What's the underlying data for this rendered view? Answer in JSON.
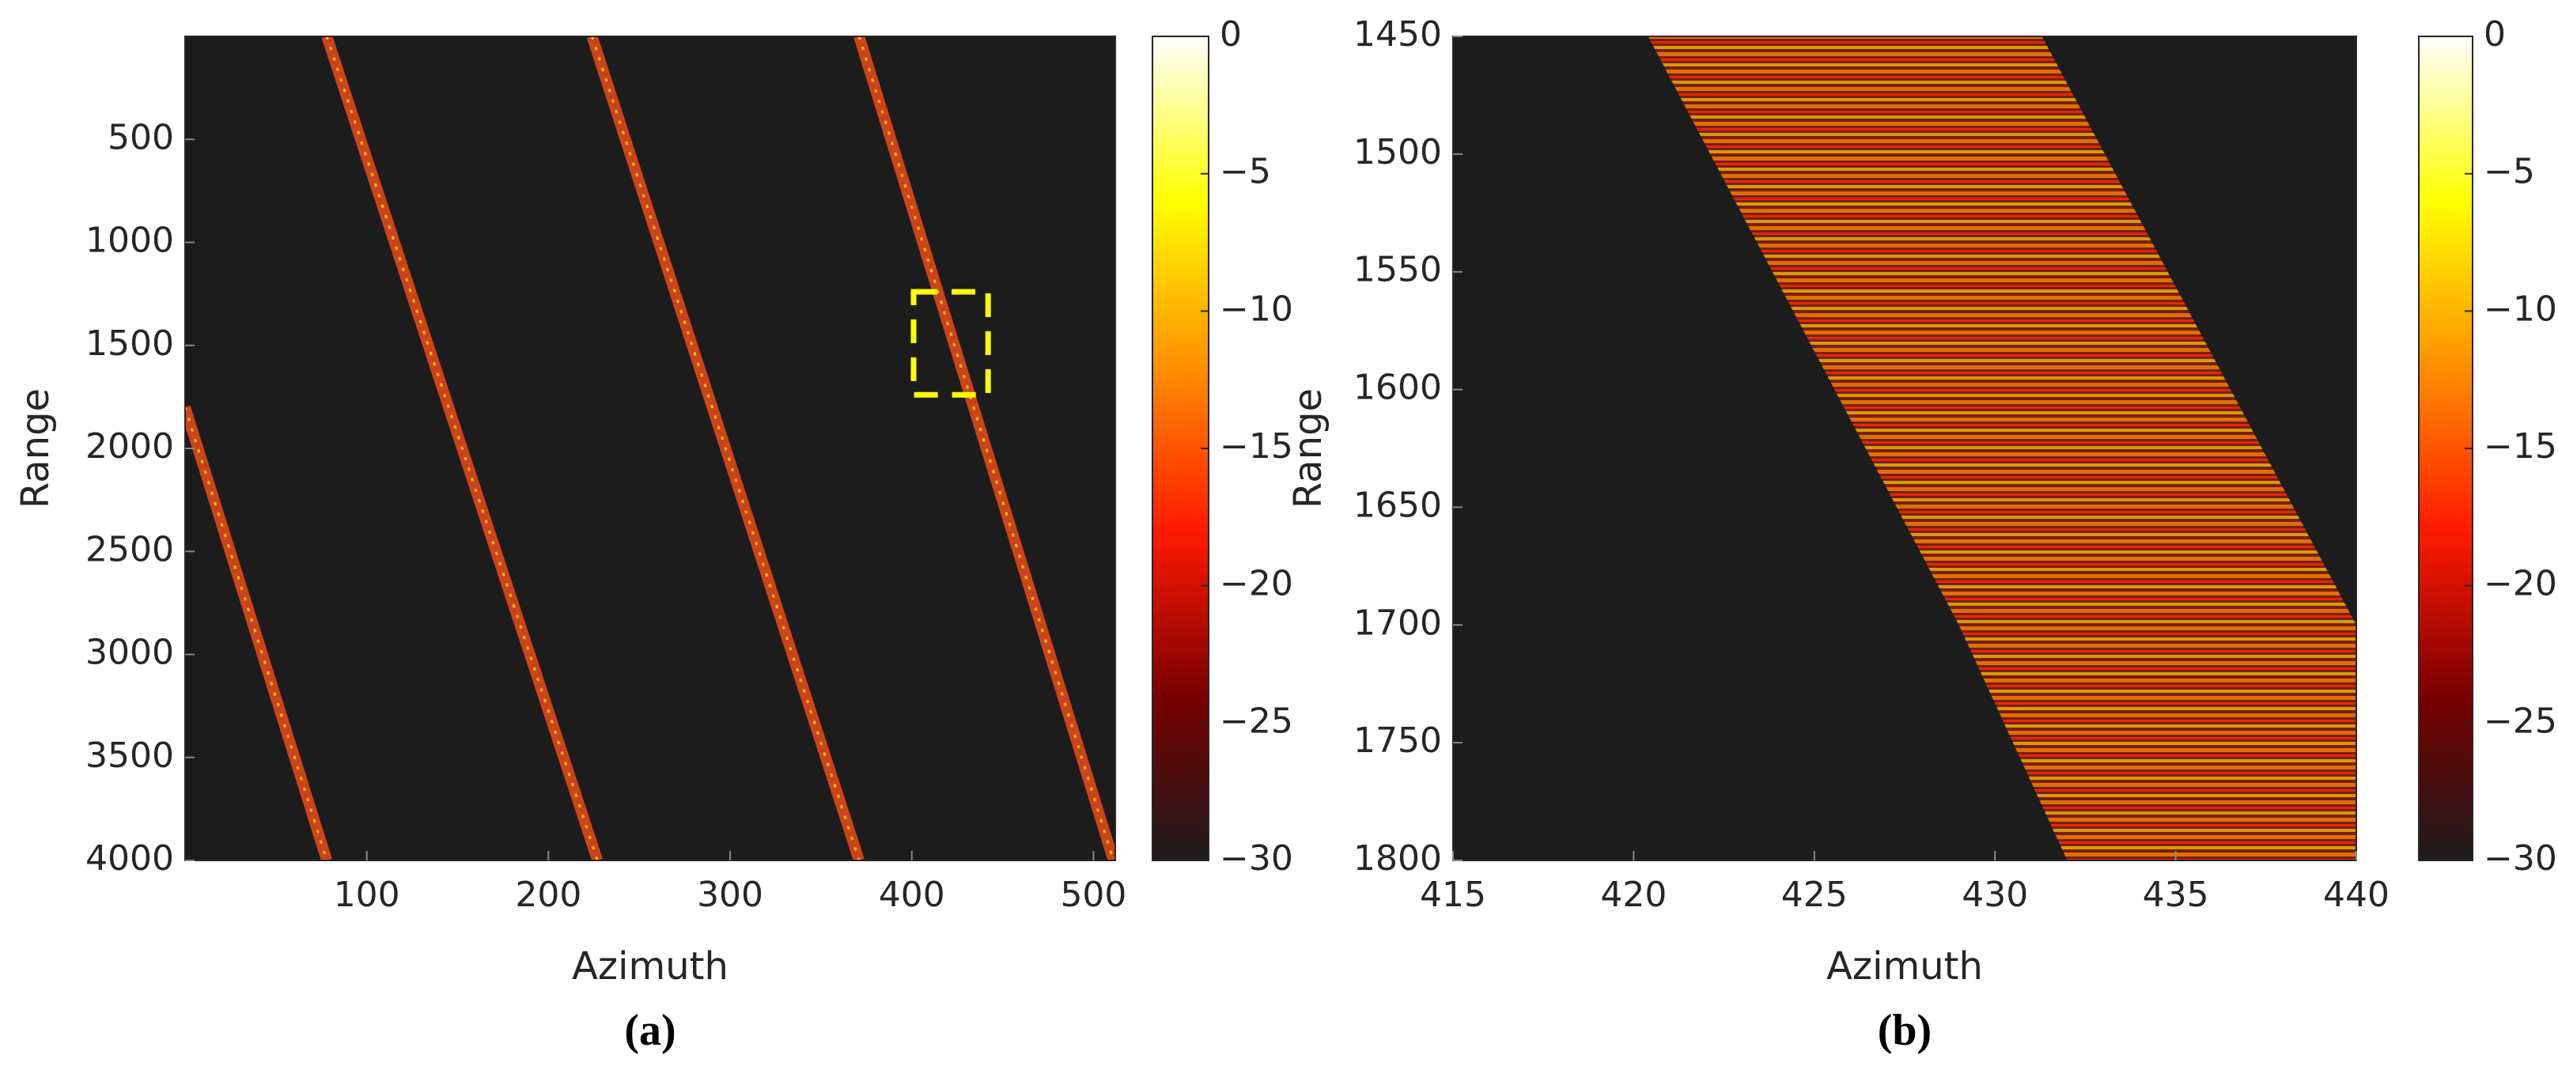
{
  "chart_data": [
    {
      "type": "heatmap",
      "caption": "(a)",
      "xlabel": "Azimuth",
      "ylabel": "Range",
      "xlim": [
        0,
        512
      ],
      "xticks": [
        100,
        200,
        300,
        400,
        500
      ],
      "ylim": [
        0,
        4000
      ],
      "yticks": [
        500,
        1000,
        1500,
        2000,
        2500,
        3000,
        3500,
        4000
      ],
      "y_reversed": true,
      "clim": [
        -30,
        0
      ],
      "cticks": [
        0,
        {
          "value": -5,
          "label": "−5"
        },
        {
          "value": -10,
          "label": "−10"
        },
        {
          "value": -15,
          "label": "−15"
        },
        {
          "value": -20,
          "label": "−20"
        },
        {
          "value": -25,
          "label": "−25"
        },
        {
          "value": -30,
          "label": "−30"
        }
      ],
      "colormap": [
        "#1c1c1c",
        "#7a0000",
        "#ff1a00",
        "#ff9000",
        "#ffff00",
        "#ffffff"
      ],
      "series": [
        {
          "color": "#e0481c",
          "x": [
            0,
            78
          ],
          "y": [
            1800,
            4000
          ]
        },
        {
          "color": "#e0481c",
          "x": [
            78,
            227
          ],
          "y": [
            0,
            4000
          ]
        },
        {
          "color": "#e0481c",
          "x": [
            224,
            371
          ],
          "y": [
            0,
            4000
          ]
        },
        {
          "color": "#e0481c",
          "x": [
            371,
            511
          ],
          "y": [
            0,
            4000
          ]
        }
      ],
      "highlight": {
        "color": "#ffff00",
        "xlim": [
          401,
          442
        ],
        "ylim": [
          1240,
          1740
        ]
      }
    },
    {
      "type": "heatmap",
      "caption": "(b)",
      "xlabel": "Azimuth",
      "ylabel": "Range",
      "xlim": [
        415,
        440
      ],
      "xticks": [
        415,
        420,
        425,
        430,
        435,
        440
      ],
      "ylim": [
        1450,
        1800
      ],
      "yticks": [
        1450,
        1500,
        1550,
        1600,
        1650,
        1700,
        1750,
        1800
      ],
      "y_reversed": true,
      "clim": [
        -30,
        0
      ],
      "cticks": [
        0,
        {
          "value": -5,
          "label": "−5"
        },
        {
          "value": -10,
          "label": "−10"
        },
        {
          "value": -15,
          "label": "−15"
        },
        {
          "value": -20,
          "label": "−20"
        },
        {
          "value": -25,
          "label": "−25"
        },
        {
          "value": -30,
          "label": "−30"
        }
      ],
      "colormap": [
        "#1c1c1c",
        "#7a0000",
        "#ff1a00",
        "#ff9000",
        "#ffff00",
        "#ffffff"
      ],
      "band": {
        "color": "#b8200e",
        "y": [
          1450,
          1700,
          1800
        ],
        "x_left": [
          420.4,
          429,
          432
        ],
        "x_right": [
          431.3,
          440,
          440
        ]
      }
    }
  ]
}
